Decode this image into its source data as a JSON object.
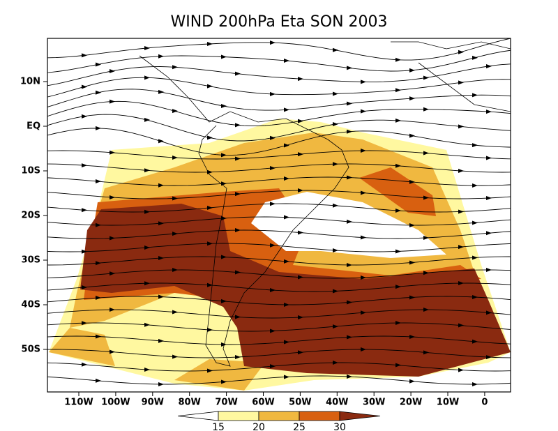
{
  "title": "WIND 200hPa Eta SON 2003",
  "lat_labels": [
    "10N",
    "EQ",
    "10S",
    "20S",
    "30S",
    "40S",
    "50S"
  ],
  "lon_labels": [
    "110W",
    "100W",
    "90W",
    "80W",
    "70W",
    "60W",
    "50W",
    "40W",
    "30W",
    "20W",
    "10W",
    "0"
  ],
  "colorbar": {
    "levels": [
      15,
      20,
      25,
      30
    ],
    "colors": [
      "#ffffff",
      "#fff8a0",
      "#f0b840",
      "#d86010",
      "#8a2a10"
    ]
  }
}
